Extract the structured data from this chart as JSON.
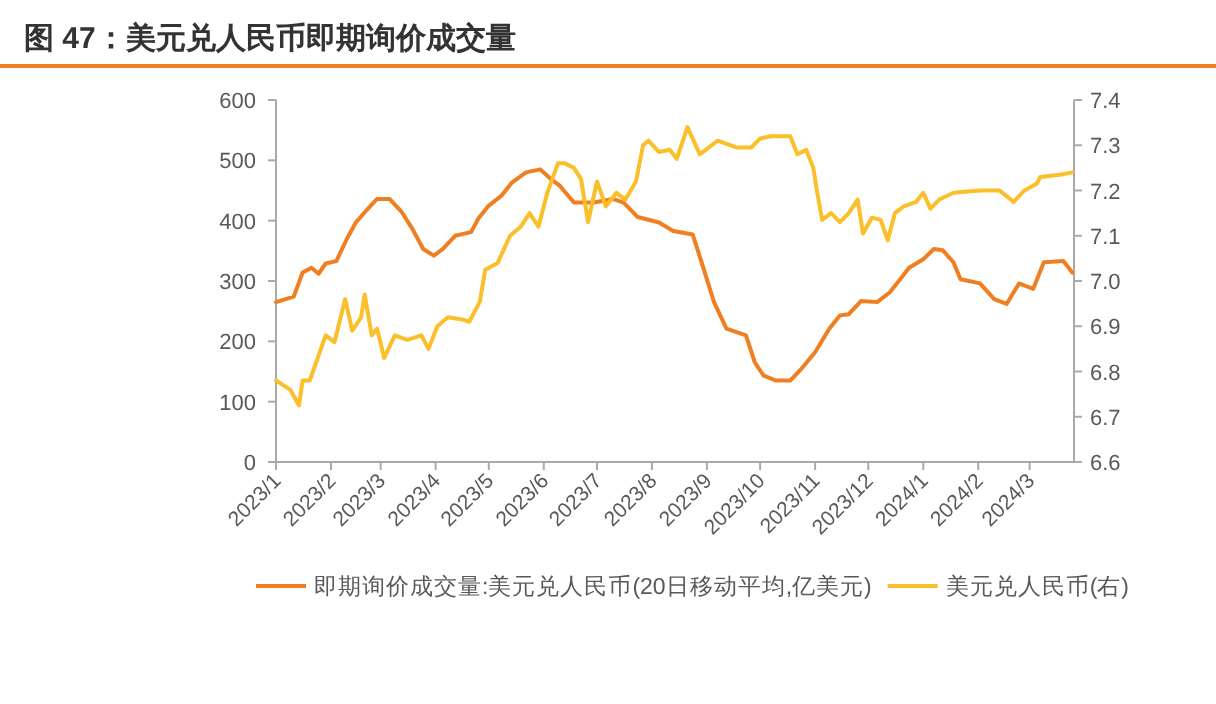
{
  "chart_data": {
    "type": "line",
    "title": "图 47：美元兑人民币即期询价成交量",
    "xlim": [
      "2023-01-01",
      "2024-03-26"
    ],
    "xticks": [
      {
        "value": "2023-01-01",
        "label": "2023/1"
      },
      {
        "value": "2023-02-01",
        "label": "2023/2"
      },
      {
        "value": "2023-03-01",
        "label": "2023/3"
      },
      {
        "value": "2023-04-01",
        "label": "2023/4"
      },
      {
        "value": "2023-05-01",
        "label": "2023/5"
      },
      {
        "value": "2023-06-01",
        "label": "2023/6"
      },
      {
        "value": "2023-07-01",
        "label": "2023/7"
      },
      {
        "value": "2023-08-01",
        "label": "2023/8"
      },
      {
        "value": "2023-09-01",
        "label": "2023/9"
      },
      {
        "value": "2023-10-01",
        "label": "2023/10"
      },
      {
        "value": "2023-11-01",
        "label": "2023/11"
      },
      {
        "value": "2023-12-01",
        "label": "2023/12"
      },
      {
        "value": "2024-01-01",
        "label": "2024/1"
      },
      {
        "value": "2024-02-01",
        "label": "2024/2"
      },
      {
        "value": "2024-03-01",
        "label": "2024/3"
      }
    ],
    "ylim": [
      0,
      600
    ],
    "yticks": [
      0,
      100,
      200,
      300,
      400,
      500,
      600
    ],
    "y2lim": [
      6.6,
      7.4
    ],
    "y2ticks": [
      {
        "value": 6.6,
        "label": "6.6"
      },
      {
        "value": 6.7,
        "label": "6.7"
      },
      {
        "value": 6.8,
        "label": "6.8"
      },
      {
        "value": 6.9,
        "label": "6.9"
      },
      {
        "value": 7.0,
        "label": "7.0"
      },
      {
        "value": 7.1,
        "label": "7.1"
      },
      {
        "value": 7.2,
        "label": "7.2"
      },
      {
        "value": 7.3,
        "label": "7.3"
      },
      {
        "value": 7.4,
        "label": "7.4"
      }
    ],
    "grid": false,
    "legend": "bottom",
    "series": [
      {
        "name": "即期询价成交量:美元兑人民币(20日移动平均,亿美元)",
        "color": "#f07f22",
        "x": [
          "2023-01-01",
          "2023-01-11",
          "2023-01-16",
          "2023-01-21",
          "2023-01-25",
          "2023-01-29",
          "2023-02-04",
          "2023-02-10",
          "2023-02-15",
          "2023-02-21",
          "2023-02-27",
          "2023-03-06",
          "2023-03-13",
          "2023-03-19",
          "2023-03-25",
          "2023-03-31",
          "2023-04-05",
          "2023-04-12",
          "2023-04-21",
          "2023-04-25",
          "2023-05-01",
          "2023-05-08",
          "2023-05-14",
          "2023-05-22",
          "2023-05-30",
          "2023-06-05",
          "2023-06-10",
          "2023-06-18",
          "2023-06-29",
          "2023-07-10",
          "2023-07-16",
          "2023-07-24",
          "2023-08-05",
          "2023-08-13",
          "2023-08-24",
          "2023-08-29",
          "2023-09-05",
          "2023-09-12",
          "2023-09-23",
          "2023-09-28",
          "2023-10-03",
          "2023-10-10",
          "2023-10-18",
          "2023-10-25",
          "2023-11-01",
          "2023-11-09",
          "2023-11-15",
          "2023-11-20",
          "2023-11-27",
          "2023-12-06",
          "2023-12-13",
          "2023-12-19",
          "2023-12-24",
          "2024-01-01",
          "2024-01-07",
          "2024-01-12",
          "2024-01-18",
          "2024-01-22",
          "2024-02-02",
          "2024-02-10",
          "2024-02-17",
          "2024-02-24",
          "2024-03-03",
          "2024-03-09",
          "2024-03-20",
          "2024-03-25"
        ],
        "values": [
          265,
          274,
          314,
          322,
          312,
          329,
          333,
          370,
          397,
          417,
          436,
          436,
          414,
          386,
          353,
          342,
          353,
          375,
          381,
          403,
          425,
          441,
          463,
          480,
          485,
          469,
          458,
          430,
          430,
          436,
          430,
          406,
          397,
          383,
          377,
          331,
          265,
          221,
          210,
          165,
          143,
          135,
          135,
          157,
          182,
          221,
          243,
          245,
          267,
          265,
          281,
          303,
          322,
          336,
          353,
          351,
          331,
          303,
          296,
          270,
          262,
          296,
          287,
          331,
          333,
          314
        ]
      },
      {
        "name": "美元兑人民币(右)",
        "color": "#fbbf2a",
        "axis": "y2",
        "x": [
          "2023-01-01",
          "2023-01-09",
          "2023-01-14",
          "2023-01-16",
          "2023-01-20",
          "2023-01-25",
          "2023-01-29",
          "2023-02-03",
          "2023-02-09",
          "2023-02-13",
          "2023-02-18",
          "2023-02-20",
          "2023-02-24",
          "2023-02-27",
          "2023-03-03",
          "2023-03-09",
          "2023-03-16",
          "2023-03-24",
          "2023-03-28",
          "2023-04-02",
          "2023-04-08",
          "2023-04-16",
          "2023-04-20",
          "2023-04-26",
          "2023-04-29",
          "2023-05-06",
          "2023-05-13",
          "2023-05-19",
          "2023-05-24",
          "2023-05-29",
          "2023-06-03",
          "2023-06-09",
          "2023-06-13",
          "2023-06-18",
          "2023-06-22",
          "2023-06-26",
          "2023-07-01",
          "2023-07-06",
          "2023-07-12",
          "2023-07-17",
          "2023-07-23",
          "2023-07-27",
          "2023-07-30",
          "2023-08-05",
          "2023-08-11",
          "2023-08-15",
          "2023-08-21",
          "2023-08-28",
          "2023-09-07",
          "2023-09-18",
          "2023-09-26",
          "2023-10-01",
          "2023-10-07",
          "2023-10-18",
          "2023-10-22",
          "2023-10-27",
          "2023-10-31",
          "2023-11-02",
          "2023-11-05",
          "2023-11-10",
          "2023-11-15",
          "2023-11-20",
          "2023-11-25",
          "2023-11-28",
          "2023-12-03",
          "2023-12-08",
          "2023-12-12",
          "2023-12-16",
          "2023-12-21",
          "2023-12-28",
          "2024-01-01",
          "2024-01-05",
          "2024-01-10",
          "2024-01-18",
          "2024-02-02",
          "2024-02-13",
          "2024-02-21",
          "2024-02-27",
          "2024-03-05",
          "2024-03-07",
          "2024-03-18",
          "2024-03-25"
        ],
        "values": [
          6.78,
          6.76,
          6.725,
          6.78,
          6.78,
          6.835,
          6.88,
          6.865,
          6.96,
          6.89,
          6.92,
          6.97,
          6.88,
          6.895,
          6.83,
          6.88,
          6.87,
          6.88,
          6.85,
          6.9,
          6.92,
          6.915,
          6.91,
          6.955,
          7.025,
          7.04,
          7.1,
          7.12,
          7.15,
          7.12,
          7.195,
          7.26,
          7.26,
          7.25,
          7.225,
          7.13,
          7.22,
          7.165,
          7.195,
          7.18,
          7.22,
          7.3,
          7.31,
          7.285,
          7.29,
          7.27,
          7.34,
          7.28,
          7.31,
          7.295,
          7.295,
          7.315,
          7.32,
          7.32,
          7.28,
          7.29,
          7.25,
          7.2,
          7.135,
          7.15,
          7.13,
          7.15,
          7.18,
          7.105,
          7.14,
          7.135,
          7.09,
          7.15,
          7.165,
          7.175,
          7.195,
          7.16,
          7.18,
          7.195,
          7.2,
          7.2,
          7.175,
          7.2,
          7.215,
          7.23,
          7.235,
          7.24
        ]
      }
    ]
  }
}
